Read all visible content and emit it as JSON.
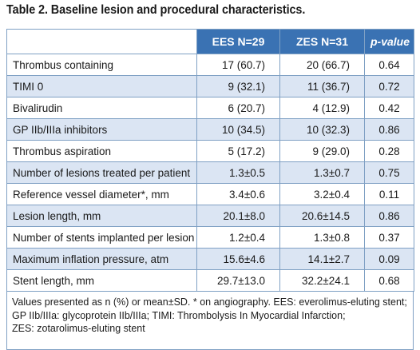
{
  "title": "Table 2. Baseline lesion and procedural characteristics.",
  "columns": [
    "",
    "EES N=29",
    "ZES N=31",
    "p-value"
  ],
  "rows": [
    {
      "label": "Thrombus containing",
      "ees": "17 (60.7)",
      "zes": "20 (66.7)",
      "p": "0.64"
    },
    {
      "label": "TIMI 0",
      "ees": "9 (32.1)",
      "zes": "11 (36.7)",
      "p": "0.72"
    },
    {
      "label": "Bivalirudin",
      "ees": "6 (20.7)",
      "zes": "4 (12.9)",
      "p": "0.42"
    },
    {
      "label": "GP IIb/IIIa inhibitors",
      "ees": "10 (34.5)",
      "zes": "10 (32.3)",
      "p": "0.86"
    },
    {
      "label": "Thrombus aspiration",
      "ees": "5 (17.2)",
      "zes": "9 (29.0)",
      "p": "0.28"
    },
    {
      "label": "Number of lesions treated per patient",
      "ees": "1.3±0.5",
      "zes": "1.3±0.7",
      "p": "0.75"
    },
    {
      "label": "Reference vessel diameter*, mm",
      "ees": "3.4±0.6",
      "zes": "3.2±0.4",
      "p": "0.11"
    },
    {
      "label": "Lesion length, mm",
      "ees": "20.1±8.0",
      "zes": "20.6±14.5",
      "p": "0.86"
    },
    {
      "label": "Number of stents implanted per lesion",
      "ees": "1.2±0.4",
      "zes": "1.3±0.8",
      "p": "0.37"
    },
    {
      "label": "Maximum inflation pressure, atm",
      "ees": "15.6±4.6",
      "zes": "14.1±2.7",
      "p": "0.09"
    },
    {
      "label": "Stent length, mm",
      "ees": "29.7±13.0",
      "zes": "32.2±24.1",
      "p": "0.68"
    }
  ],
  "footnote": [
    "Values presented as n (%) or mean±SD. * on angiography. EES: everolimus-eluting stent;",
    "GP IIb/IIIa: glycoprotein IIb/IIIa; TIMI: Thrombolysis In Myocardial Infarction;",
    "ZES: zotarolimus-eluting stent"
  ],
  "colors": {
    "header": "#3a72b3",
    "alt_row": "#dbe5f3",
    "border": "#7fa0c4"
  }
}
